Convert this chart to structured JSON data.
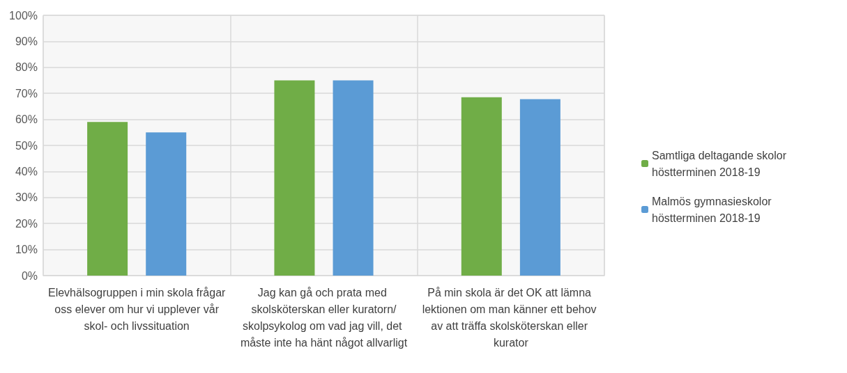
{
  "chart_data": {
    "type": "bar",
    "categories": [
      "Elevhälsogruppen i min skola frågar oss elever om hur vi upplever vår skol- och livssituation",
      "Jag kan gå och prata med skolsköterskan eller kuratorn/skolpsykolog om vad jag vill, det måste inte ha hänt något allvarligt",
      "På min skola är det OK att lämna lektionen om man känner ett behov av att träffa skolsköterskan eller kurator"
    ],
    "series": [
      {
        "name": "Samtliga deltagande skolor höstterminen 2018-19",
        "color": "#70ad47",
        "values": [
          59,
          75,
          68.5
        ]
      },
      {
        "name": "Malmös gymnasieskolor höstterminen 2018-19",
        "color": "#5b9bd5",
        "values": [
          55,
          75,
          67.8
        ]
      }
    ],
    "ylim": [
      0,
      100
    ],
    "yticks": [
      {
        "value": 0,
        "label": "0%"
      },
      {
        "value": 10,
        "label": "10%"
      },
      {
        "value": 20,
        "label": "20%"
      },
      {
        "value": 30,
        "label": "30%"
      },
      {
        "value": 40,
        "label": "40%"
      },
      {
        "value": 50,
        "label": "50%"
      },
      {
        "value": 60,
        "label": "60%"
      },
      {
        "value": 70,
        "label": "70%"
      },
      {
        "value": 80,
        "label": "80%"
      },
      {
        "value": 90,
        "label": "90%"
      },
      {
        "value": 100,
        "label": "100%"
      }
    ],
    "grid": true,
    "legend": "right"
  }
}
